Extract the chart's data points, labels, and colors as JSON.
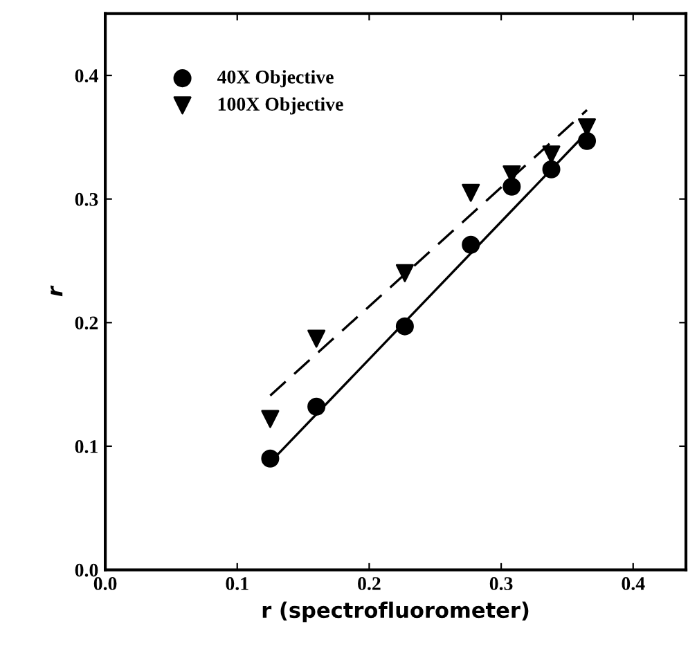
{
  "chart_data": {
    "type": "scatter",
    "xlabel": "r (spectrofluorometer)",
    "ylabel": "r",
    "xlim": [
      0.0,
      0.44
    ],
    "ylim": [
      0.0,
      0.45
    ],
    "xticks": [
      {
        "value": 0.0,
        "label": "0.0"
      },
      0.1,
      0.2,
      0.3,
      0.4
    ],
    "yticks": [
      {
        "value": 0.0,
        "label": "0.0"
      },
      0.1,
      0.2,
      0.3,
      0.4
    ],
    "grid": false,
    "legend": "top left",
    "series": [
      {
        "name": "40X Objective",
        "color": "#000000",
        "marker": "circle",
        "x": [
          0.125,
          0.16,
          0.227,
          0.277,
          0.308,
          0.338,
          0.365
        ],
        "values": [
          0.09,
          0.132,
          0.197,
          0.263,
          0.31,
          0.324,
          0.347
        ]
      },
      {
        "name": "100X Objective",
        "color": "#000000",
        "marker": "triangle",
        "x": [
          0.125,
          0.16,
          0.227,
          0.277,
          0.308,
          0.338,
          0.365
        ],
        "values": [
          0.122,
          0.187,
          0.24,
          0.305,
          0.32,
          0.336,
          0.358
        ]
      },
      {
        "type": "line",
        "color": "#000000",
        "line_style": "solid",
        "marker": "none",
        "x": [
          0.125,
          0.365
        ],
        "values": [
          0.087,
          0.354
        ]
      },
      {
        "type": "line",
        "color": "#000000",
        "line_style": "dashed",
        "marker": "none",
        "x": [
          0.125,
          0.365
        ],
        "values": [
          0.141,
          0.372
        ]
      }
    ]
  }
}
